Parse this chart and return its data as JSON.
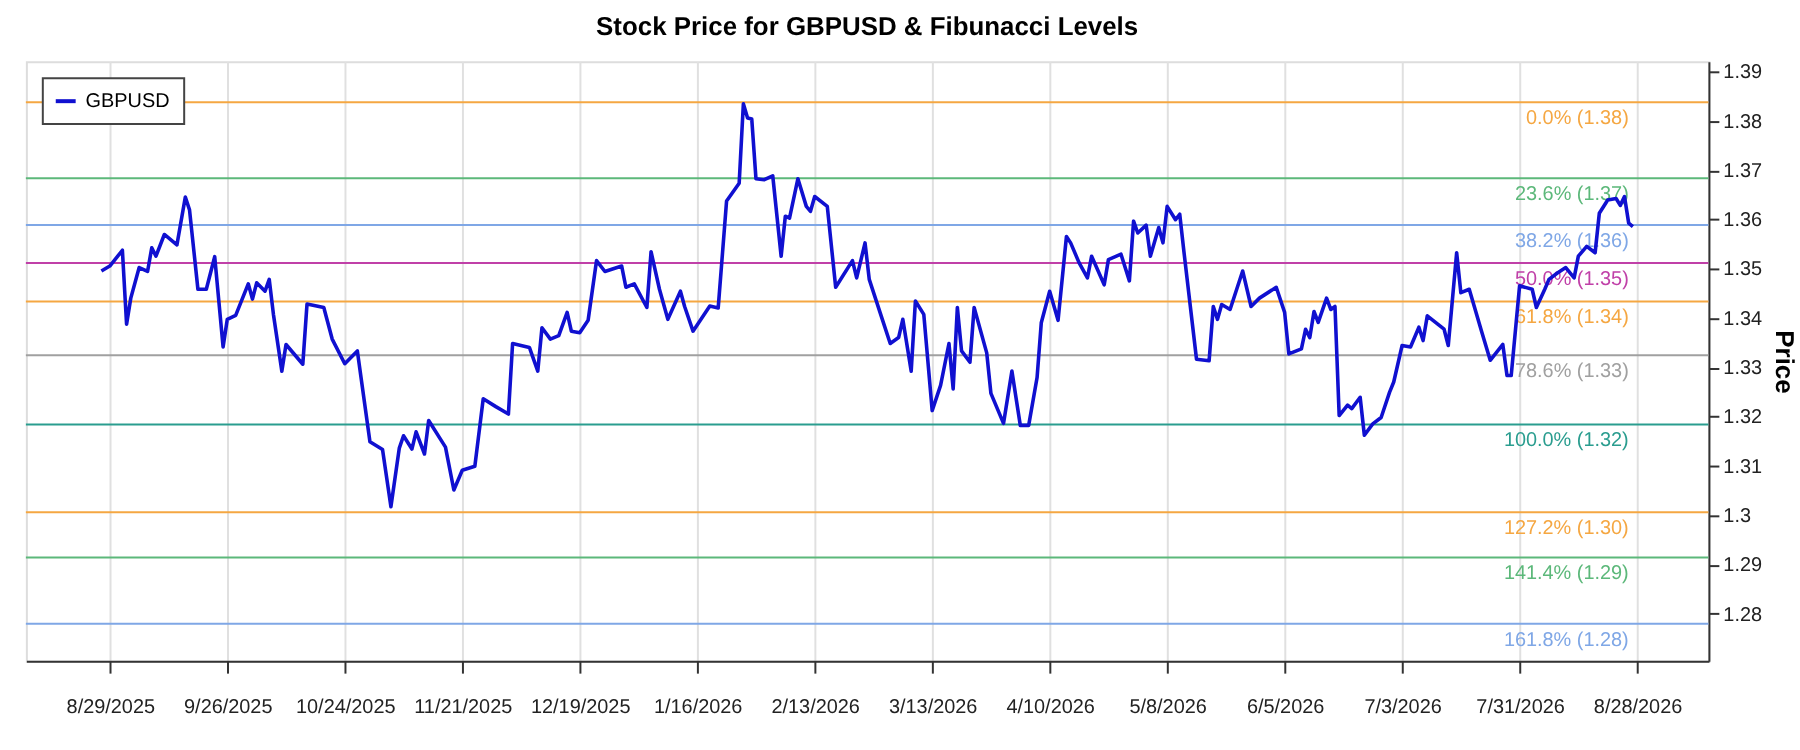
{
  "chart_data": {
    "type": "line",
    "title": "Stock Price for GBPUSD & Fibunacci Levels",
    "ylabel": "Price",
    "x": [
      "2025-08-27",
      "2025-08-29",
      "2025-09-01",
      "2025-09-02",
      "2025-09-03",
      "2025-09-05",
      "2025-09-07",
      "2025-09-08",
      "2025-09-09",
      "2025-09-11",
      "2025-09-14",
      "2025-09-16",
      "2025-09-17",
      "2025-09-19",
      "2025-09-21",
      "2025-09-23",
      "2025-09-25",
      "2025-09-26",
      "2025-09-28",
      "2025-10-01",
      "2025-10-02",
      "2025-10-03",
      "2025-10-05",
      "2025-10-06",
      "2025-10-07",
      "2025-10-09",
      "2025-10-10",
      "2025-10-14",
      "2025-10-15",
      "2025-10-19",
      "2025-10-21",
      "2025-10-24",
      "2025-10-27",
      "2025-10-30",
      "2025-11-02",
      "2025-11-04",
      "2025-11-06",
      "2025-11-07",
      "2025-11-09",
      "2025-11-10",
      "2025-11-12",
      "2025-11-13",
      "2025-11-17",
      "2025-11-19",
      "2025-11-21",
      "2025-11-24",
      "2025-11-26",
      "2025-11-29",
      "2025-12-02",
      "2025-12-03",
      "2025-12-07",
      "2025-12-09",
      "2025-12-10",
      "2025-12-12",
      "2025-12-14",
      "2025-12-16",
      "2025-12-17",
      "2025-12-19",
      "2025-12-21",
      "2025-12-23",
      "2025-12-25",
      "2025-12-29",
      "2025-12-30",
      "2026-01-01",
      "2026-01-04",
      "2026-01-05",
      "2026-01-07",
      "2026-01-09",
      "2026-01-12",
      "2026-01-13",
      "2026-01-15",
      "2026-01-19",
      "2026-01-21",
      "2026-01-23",
      "2026-01-26",
      "2026-01-27",
      "2026-01-28",
      "2026-01-29",
      "2026-01-30",
      "2026-02-01",
      "2026-02-03",
      "2026-02-05",
      "2026-02-06",
      "2026-02-07",
      "2026-02-09",
      "2026-02-11",
      "2026-02-12",
      "2026-02-13",
      "2026-02-16",
      "2026-02-18",
      "2026-02-22",
      "2026-02-23",
      "2026-02-25",
      "2026-02-26",
      "2026-03-01",
      "2026-03-03",
      "2026-03-05",
      "2026-03-06",
      "2026-03-08",
      "2026-03-09",
      "2026-03-11",
      "2026-03-13",
      "2026-03-15",
      "2026-03-17",
      "2026-03-18",
      "2026-03-19",
      "2026-03-20",
      "2026-03-22",
      "2026-03-23",
      "2026-03-26",
      "2026-03-27",
      "2026-03-30",
      "2026-04-01",
      "2026-04-03",
      "2026-04-05",
      "2026-04-07",
      "2026-04-08",
      "2026-04-10",
      "2026-04-12",
      "2026-04-14",
      "2026-04-15",
      "2026-04-17",
      "2026-04-19",
      "2026-04-20",
      "2026-04-23",
      "2026-04-24",
      "2026-04-27",
      "2026-04-29",
      "2026-04-30",
      "2026-05-01",
      "2026-05-03",
      "2026-05-04",
      "2026-05-06",
      "2026-05-07",
      "2026-05-08",
      "2026-05-10",
      "2026-05-11",
      "2026-05-12",
      "2026-05-15",
      "2026-05-18",
      "2026-05-19",
      "2026-05-20",
      "2026-05-21",
      "2026-05-23",
      "2026-05-26",
      "2026-05-28",
      "2026-05-30",
      "2026-06-03",
      "2026-06-05",
      "2026-06-06",
      "2026-06-09",
      "2026-06-10",
      "2026-06-11",
      "2026-06-12",
      "2026-06-13",
      "2026-06-15",
      "2026-06-16",
      "2026-06-17",
      "2026-06-18",
      "2026-06-20",
      "2026-06-21",
      "2026-06-23",
      "2026-06-24",
      "2026-06-26",
      "2026-06-28",
      "2026-06-30",
      "2026-07-01",
      "2026-07-03",
      "2026-07-05",
      "2026-07-07",
      "2026-07-08",
      "2026-07-09",
      "2026-07-13",
      "2026-07-14",
      "2026-07-16",
      "2026-07-17",
      "2026-07-19",
      "2026-07-22",
      "2026-07-24",
      "2026-07-27",
      "2026-07-28",
      "2026-07-29",
      "2026-07-31",
      "2026-08-03",
      "2026-08-04",
      "2026-08-06",
      "2026-08-07",
      "2026-08-09",
      "2026-08-11",
      "2026-08-13",
      "2026-08-14",
      "2026-08-16",
      "2026-08-18",
      "2026-08-19",
      "2026-08-21",
      "2026-08-23",
      "2026-08-24",
      "2026-08-25",
      "2026-08-26",
      "2026-08-27"
    ],
    "series": [
      {
        "name": "GBPUSD",
        "color": "#1010d0",
        "values": [
          1.3495,
          1.3505,
          1.3537,
          1.3387,
          1.344,
          1.3502,
          1.3494,
          1.3542,
          1.3525,
          1.3569,
          1.3548,
          1.3645,
          1.3619,
          1.3458,
          1.3458,
          1.3524,
          1.3341,
          1.3397,
          1.3405,
          1.3469,
          1.3438,
          1.3471,
          1.3454,
          1.3478,
          1.3407,
          1.3292,
          1.3346,
          1.3306,
          1.3428,
          1.3421,
          1.3357,
          1.3307,
          1.3333,
          1.3149,
          1.3133,
          1.3017,
          1.3136,
          1.3161,
          1.3134,
          1.3169,
          1.3124,
          1.3192,
          1.3138,
          1.3051,
          1.3091,
          1.3099,
          1.3236,
          1.322,
          1.3205,
          1.3348,
          1.334,
          1.3292,
          1.338,
          1.3357,
          1.3364,
          1.3411,
          1.3373,
          1.337,
          1.3395,
          1.3516,
          1.3494,
          1.3505,
          1.3462,
          1.3469,
          1.3421,
          1.3534,
          1.3458,
          1.3397,
          1.3454,
          1.3423,
          1.3373,
          1.3424,
          1.342,
          1.3637,
          1.3673,
          1.3834,
          1.3805,
          1.3803,
          1.3682,
          1.368,
          1.3688,
          1.3525,
          1.3606,
          1.3602,
          1.3682,
          1.3626,
          1.3616,
          1.3646,
          1.3626,
          1.3462,
          1.3516,
          1.3481,
          1.3552,
          1.3478,
          1.34,
          1.3348,
          1.336,
          1.3397,
          1.3292,
          1.3434,
          1.3407,
          1.3212,
          1.3263,
          1.3348,
          1.3256,
          1.3421,
          1.3333,
          1.331,
          1.3421,
          1.3329,
          1.3247,
          1.3186,
          1.3292,
          1.3182,
          1.3182,
          1.3279,
          1.339,
          1.3454,
          1.3395,
          1.3565,
          1.3552,
          1.3512,
          1.3481,
          1.3525,
          1.3467,
          1.3518,
          1.3529,
          1.3475,
          1.3596,
          1.3572,
          1.3588,
          1.3525,
          1.3583,
          1.3552,
          1.3626,
          1.3599,
          1.361,
          1.3534,
          1.3316,
          1.3313,
          1.3423,
          1.3397,
          1.3427,
          1.3417,
          1.3495,
          1.3423,
          1.344,
          1.3462,
          1.3411,
          1.3327,
          1.3337,
          1.3377,
          1.336,
          1.3413,
          1.3391,
          1.344,
          1.3417,
          1.3423,
          1.3202,
          1.3223,
          1.3216,
          1.3239,
          1.3162,
          1.3185,
          1.3198,
          1.3249,
          1.327,
          1.3344,
          1.3341,
          1.3381,
          1.3354,
          1.3404,
          1.3377,
          1.3344,
          1.3532,
          1.3451,
          1.3458,
          1.3371,
          1.3314,
          1.3346,
          1.3283,
          1.3283,
          1.3465,
          1.3458,
          1.3421,
          1.3458,
          1.3478,
          1.3491,
          1.3502,
          1.3481,
          1.3525,
          1.3545,
          1.3532,
          1.3612,
          1.3639,
          1.3642,
          1.3628,
          1.3646,
          1.3592,
          1.3585
        ]
      }
    ],
    "xlim": [
      "2025-08-09",
      "2026-09-14"
    ],
    "xticks": [
      {
        "value": "2025-08-29",
        "label": "8/29/2025"
      },
      {
        "value": "2025-09-26",
        "label": "9/26/2025"
      },
      {
        "value": "2025-10-24",
        "label": "10/24/2025"
      },
      {
        "value": "2025-11-21",
        "label": "11/21/2025"
      },
      {
        "value": "2025-12-19",
        "label": "12/19/2025"
      },
      {
        "value": "2026-01-16",
        "label": "1/16/2026"
      },
      {
        "value": "2026-02-13",
        "label": "2/13/2026"
      },
      {
        "value": "2026-03-13",
        "label": "3/13/2026"
      },
      {
        "value": "2026-04-10",
        "label": "4/10/2026"
      },
      {
        "value": "2026-05-08",
        "label": "5/8/2026"
      },
      {
        "value": "2026-06-05",
        "label": "6/5/2026"
      },
      {
        "value": "2026-07-03",
        "label": "7/3/2026"
      },
      {
        "value": "2026-07-31",
        "label": "7/31/2026"
      },
      {
        "value": "2026-08-28",
        "label": "8/28/2026"
      }
    ],
    "ylim": [
      1.2705,
      1.392
    ],
    "yticks": [
      1.28,
      1.29,
      {
        "value": 1.3,
        "label": "1.3"
      },
      1.31,
      1.32,
      1.33,
      1.34,
      1.35,
      1.36,
      1.37,
      1.38,
      1.39
    ],
    "ref_lines": [
      {
        "axis": "y",
        "value": 1.3837,
        "label": "0.0% (1.38)",
        "color": "#f5a742"
      },
      {
        "axis": "y",
        "value": 1.3683,
        "label": "23.6% (1.37)",
        "color": "#5cb87a"
      },
      {
        "axis": "y",
        "value": 1.3588,
        "label": "38.2% (1.36)",
        "color": "#7fa7e6"
      },
      {
        "axis": "y",
        "value": 1.3511,
        "label": "50.0% (1.35)",
        "color": "#c040a8"
      },
      {
        "axis": "y",
        "value": 1.3433,
        "label": "61.8% (1.34)",
        "color": "#f5a742"
      },
      {
        "axis": "y",
        "value": 1.3324,
        "label": "78.6% (1.33)",
        "color": "#a0a0a0"
      },
      {
        "axis": "y",
        "value": 1.3184,
        "label": "100.0% (1.32)",
        "color": "#2a9d8f"
      },
      {
        "axis": "y",
        "value": 1.3006,
        "label": "127.2% (1.30)",
        "color": "#f5a742"
      },
      {
        "axis": "y",
        "value": 1.2914,
        "label": "141.4% (1.29)",
        "color": "#5cb87a"
      },
      {
        "axis": "y",
        "value": 1.278,
        "label": "161.8% (1.28)",
        "color": "#7fa7e6"
      }
    ],
    "grid": "x",
    "legend": "top left",
    "marker": "none",
    "line_style": "solid"
  }
}
